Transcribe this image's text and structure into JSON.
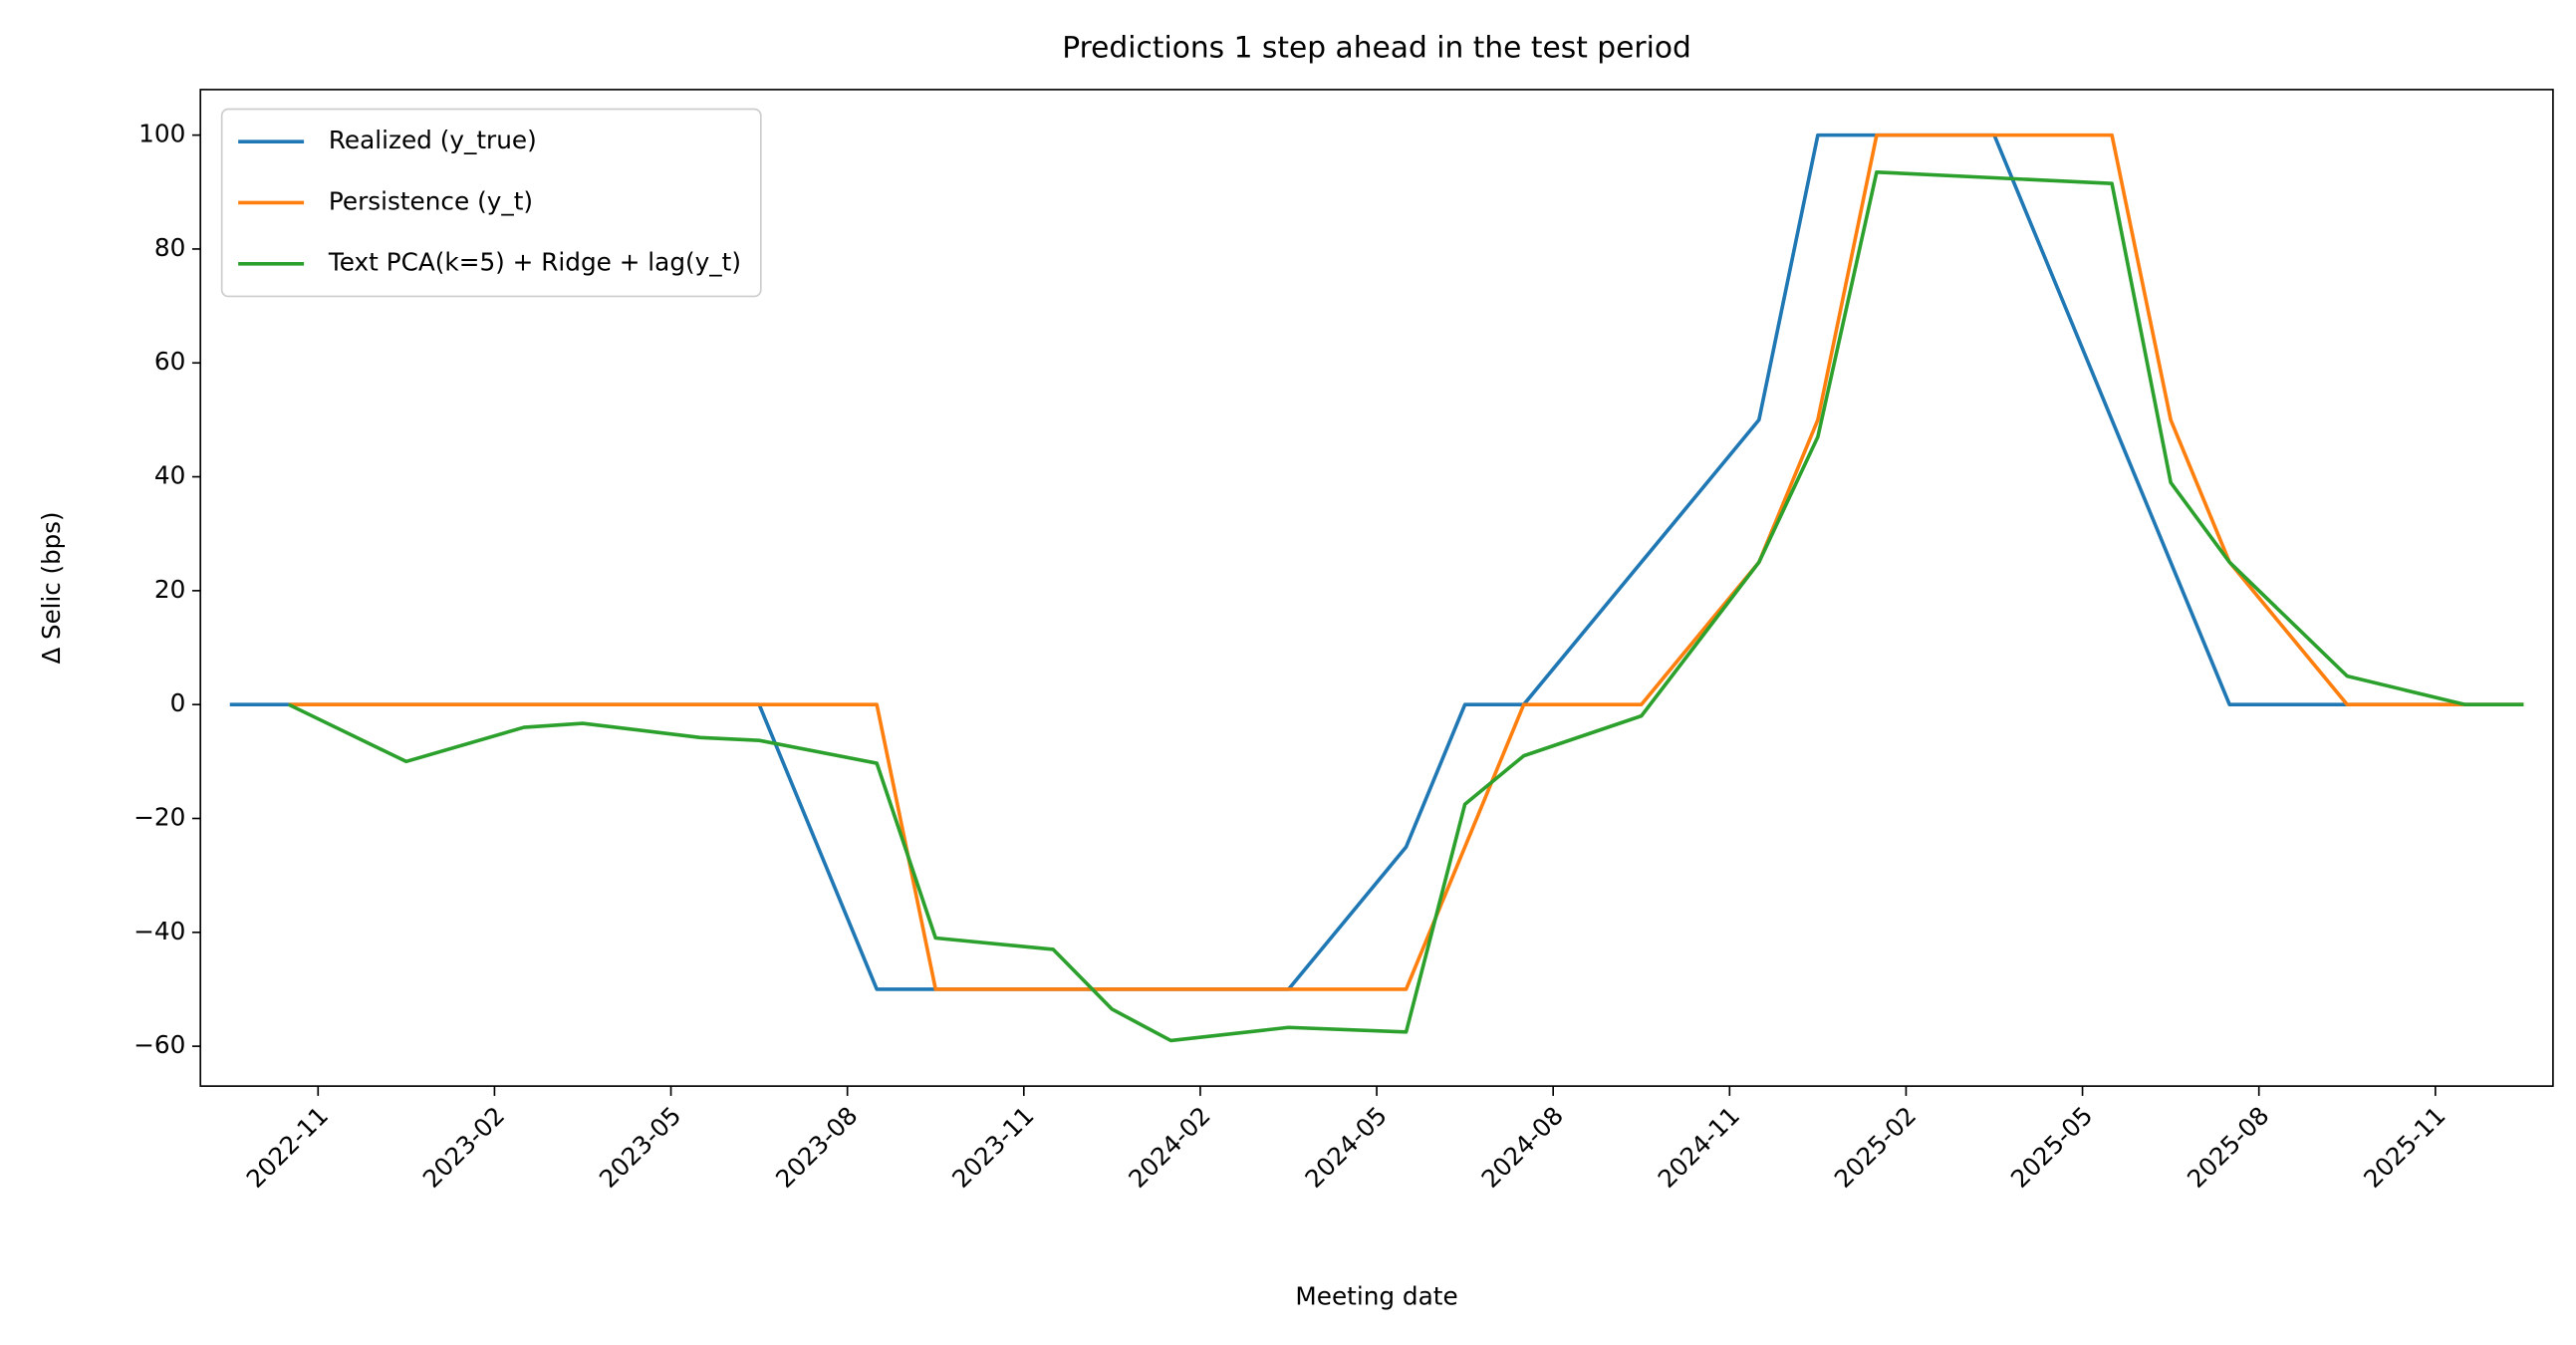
{
  "chart_data": {
    "type": "line",
    "title": "Predictions 1 step ahead in the test period",
    "x_label": "Meeting date",
    "y_label": "Δ Selic (bps)",
    "x": [
      "2022-09",
      "2022-10",
      "2022-12",
      "2023-02",
      "2023-03",
      "2023-05",
      "2023-06",
      "2023-08",
      "2023-09",
      "2023-11",
      "2023-12",
      "2024-01",
      "2024-03",
      "2024-05",
      "2024-06",
      "2024-07",
      "2024-09",
      "2024-11",
      "2024-12",
      "2025-01",
      "2025-03",
      "2025-05",
      "2025-06",
      "2025-07",
      "2025-09",
      "2025-11",
      "2025-12"
    ],
    "series": [
      {
        "name": "Realized (y_true)",
        "color": "#1f77b4",
        "values": [
          0,
          0,
          0,
          0,
          0,
          0,
          0,
          -50,
          -50,
          -50,
          -50,
          -50,
          -50,
          -25,
          0,
          0,
          25,
          50,
          100,
          100,
          100,
          50,
          25,
          0,
          0,
          0,
          0
        ]
      },
      {
        "name": "Persistence (y_t)",
        "color": "#ff7f0e",
        "values": [
          null,
          0,
          0,
          0,
          0,
          0,
          0,
          0,
          -50,
          -50,
          -50,
          -50,
          -50,
          -50,
          -25,
          0,
          0,
          25,
          50,
          100,
          100,
          100,
          50,
          25,
          0,
          0,
          0
        ]
      },
      {
        "name": "Text PCA(k=5) + Ridge + lag(y_t)",
        "color": "#2ca02c",
        "values": [
          null,
          0,
          -10,
          -4,
          -3.3,
          -5.8,
          -6.3,
          -10.3,
          -41,
          -43,
          -53.5,
          -59,
          -56.7,
          -57.5,
          -17.5,
          -9,
          -2,
          25,
          47,
          93.5,
          92.5,
          91.5,
          39,
          25,
          5,
          0,
          0
        ]
      }
    ],
    "xlim": [
      "2022-09",
      "2026-01"
    ],
    "xticks": [
      "2022-11",
      "2023-02",
      "2023-05",
      "2023-08",
      "2023-11",
      "2024-02",
      "2024-05",
      "2024-08",
      "2024-11",
      "2025-02",
      "2025-05",
      "2025-08",
      "2025-11"
    ],
    "ylim": [
      -67,
      108
    ],
    "yticks": [
      {
        "value": -60,
        "label": "−60"
      },
      {
        "value": -40,
        "label": "−40"
      },
      {
        "value": -20,
        "label": "−20"
      },
      0,
      20,
      40,
      60,
      80,
      100
    ],
    "grid": false,
    "legend": "upper left"
  }
}
